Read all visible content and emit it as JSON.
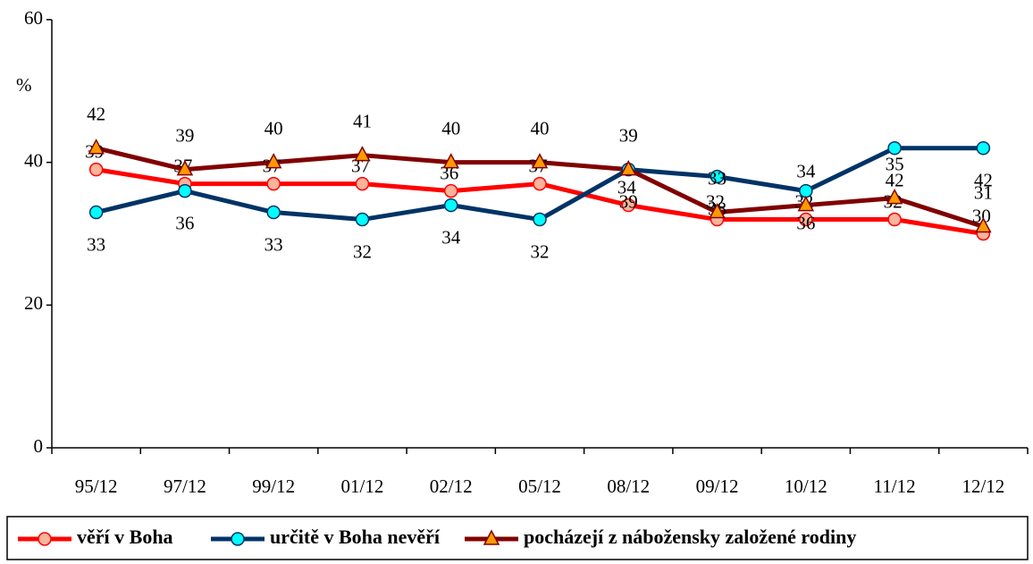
{
  "chart_data": {
    "type": "line",
    "y_label": "%",
    "categories": [
      "95/12",
      "97/12",
      "99/12",
      "01/12",
      "02/12",
      "05/12",
      "08/12",
      "09/12",
      "10/12",
      "11/12",
      "12/12"
    ],
    "series": [
      {
        "name": "věří v Boha",
        "color": "#ff0000",
        "marker_color": "#f9b49c",
        "marker": "circle",
        "values": [
          39,
          37,
          37,
          37,
          36,
          37,
          34,
          32,
          32,
          32,
          30
        ]
      },
      {
        "name": "určitě v Boha nevěří",
        "color": "#003366",
        "marker_color": "#00ffff",
        "marker": "circle",
        "values": [
          33,
          36,
          33,
          32,
          34,
          32,
          39,
          38,
          36,
          42,
          42
        ]
      },
      {
        "name": "pocházejí z nábožensky založené rodiny",
        "color": "#800000",
        "marker_color": "#ff9900",
        "marker": "triangle",
        "values": [
          42,
          39,
          40,
          41,
          40,
          40,
          39,
          33,
          34,
          35,
          31
        ]
      }
    ],
    "ylim": [
      0,
      60
    ],
    "yticks": [
      0,
      20,
      40,
      60
    ],
    "grid": false
  }
}
